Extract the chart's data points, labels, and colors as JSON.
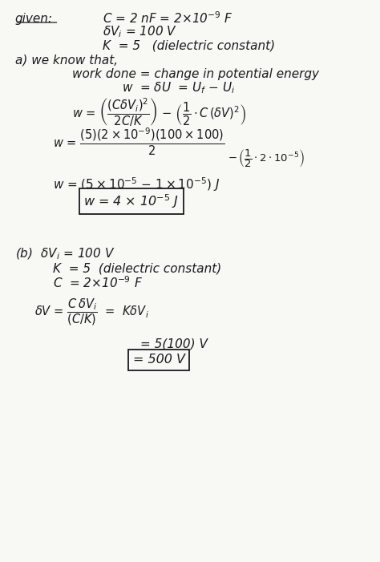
{
  "figsize": [
    4.74,
    7.01
  ],
  "dpi": 100,
  "bg_color": "#f8f8f4",
  "text_color": "#1a1a1a",
  "fontsize": 11,
  "given_label": "given:",
  "given_C": "C = 2 nF = 2×10$^{-9}$ F",
  "given_dV": "$\\delta$V$_i$ = 100 V",
  "given_K": "K  = 5   (dielectric constant)",
  "part_a_intro": "a) we know that,",
  "part_a_line1": "work done = change in potential energy",
  "part_a_line2": "w  = $\\delta$U  = U$_f$ $-$ U$_i$",
  "part_a_eq1": "w = $\\left(\\dfrac{(C\\delta V_i)^2}{2C/K}\\right)$ $-$ $\\left(\\dfrac{1}{2}\\cdot C\\,(\\delta V)^2\\right)$",
  "part_a_num": "w = $\\dfrac{(5)(2\\times10^{-9})(100\\times100)}{2}$",
  "part_a_sub": "$-\\,\\left(\\dfrac{1}{2}\\cdot 2\\cdot10^{-5}\\right)$",
  "part_a_line3": "w = $(5\\times10^{-5}$ $-$ $1\\times10^{-5})$ J",
  "part_a_ans": "w = 4 $\\times$ 10$^{-5}$ J",
  "part_b_label": "(b)  $\\delta$V$_i$ = 100 V",
  "part_b_K": "K  = 5  (dielectric constant)",
  "part_b_C": "C  = 2$\\times$10$^{-9}$ F",
  "part_b_eq": "$\\delta$V = $\\dfrac{C\\,\\delta V_i}{(C/K)}$  =  K$\\delta$V$_i$",
  "part_b_line1": "= 5(100) V",
  "part_b_ans": "= 500 V"
}
